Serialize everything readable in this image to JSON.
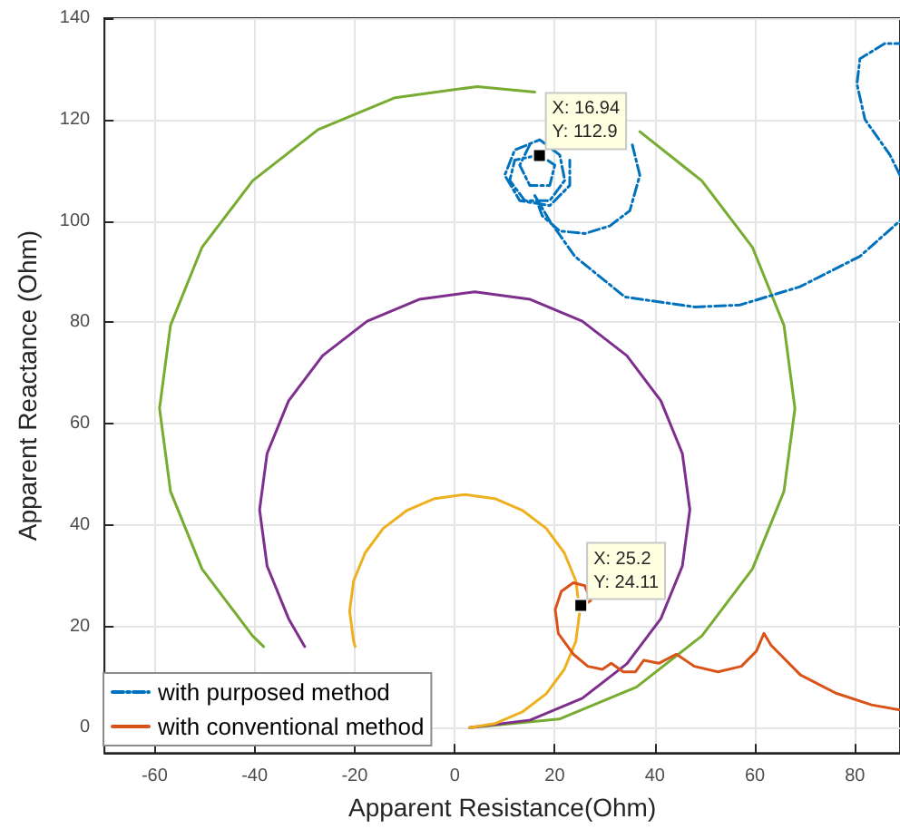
{
  "chart_data": {
    "type": "line",
    "xlabel": "Apparent Resistance(Ohm)",
    "ylabel": "Apparent Reactance (Ohm)",
    "xlim": [
      -70,
      89
    ],
    "xticks": [
      -60,
      -40,
      -20,
      0,
      20,
      40,
      60,
      80
    ],
    "ylim": [
      -5,
      140
    ],
    "yticks": [
      0,
      20,
      40,
      60,
      80,
      100,
      120,
      140
    ],
    "grid": true,
    "legend": "bottom left",
    "marker": "none",
    "annotations": [
      {
        "text": "X: 16.94\nY: 112.9",
        "x": 16.94,
        "y": 112.9
      },
      {
        "text": "X: 25.2\nY: 24.11",
        "x": 25.2,
        "y": 24.11
      }
    ],
    "series": [
      {
        "name": "with purposed method",
        "color": "#0072bd",
        "line_style": "dashed",
        "x": [
          17,
          12,
          11,
          14,
          19,
          22,
          21,
          17,
          12,
          10,
          13,
          19,
          23,
          23,
          null,
          15,
          13,
          15,
          19,
          20,
          17,
          null,
          null,
          null,
          35.5,
          37,
          35,
          31,
          26,
          21,
          17.5,
          16,
          19,
          24,
          34,
          48,
          57,
          69,
          81,
          89,
          null,
          89,
          87,
          82,
          80.4,
          81,
          86,
          89
        ],
        "values": [
          113,
          112,
          108,
          104,
          104,
          108,
          113,
          116,
          114,
          109,
          104,
          103,
          107,
          112,
          null,
          115,
          111,
          107,
          107,
          111,
          113,
          null,
          null,
          null,
          115,
          109,
          102,
          99,
          97.5,
          98,
          101,
          105,
          100,
          93,
          85,
          83,
          83.4,
          87,
          93,
          100,
          null,
          109,
          113,
          120,
          127,
          132,
          135,
          135
        ]
      },
      {
        "name": "with conventional method",
        "color": "#d95319",
        "line_style": "solid",
        "x": [
          25.4,
          27.2,
          26,
          23.7,
          21.3,
          20.1,
          20.7,
          23.7,
          26.6,
          29.5,
          31.3,
          33.7,
          36.1,
          37.8,
          40.8,
          44.3,
          47.9,
          52.6,
          57.3,
          60.3,
          61.8,
          63.2,
          69.1,
          76.2,
          83.3,
          89
        ],
        "values": [
          23.9,
          25.1,
          28,
          28.6,
          26.9,
          23.3,
          18.6,
          14.5,
          12.1,
          11.5,
          12.7,
          11,
          11,
          13.3,
          12.7,
          14.5,
          12.1,
          11,
          12.1,
          15.1,
          18.6,
          16.3,
          10.4,
          6.8,
          4.5,
          3.5
        ]
      },
      {
        "color": "#edb120",
        "line_style": "solid",
        "x": [
          -19.9,
          -20.2,
          -21,
          -20.2,
          -17.9,
          -14.3,
          -9.5,
          -4,
          2,
          8,
          13.5,
          18.3,
          21.9,
          24.2,
          25,
          24.2,
          21.9,
          18.3,
          13.5,
          8,
          3
        ],
        "values": [
          16,
          17,
          23,
          29,
          34.5,
          39.3,
          42.9,
          45.2,
          46,
          45.2,
          42.9,
          39.3,
          34.5,
          29,
          23,
          17,
          11.5,
          6.7,
          3.1,
          0.8,
          0
        ]
      },
      {
        "color": "#7e2f8e",
        "line_style": "solid",
        "x": [
          -30,
          -33.2,
          -37.5,
          -39,
          -37.5,
          -33.2,
          -26.4,
          -17.5,
          -7.1,
          4,
          15.1,
          25.5,
          34.4,
          41.2,
          45.5,
          47,
          45.5,
          41.2,
          34.4,
          25.5,
          15.1,
          3
        ],
        "values": [
          16,
          21.5,
          31.9,
          43,
          54.1,
          64.5,
          73.4,
          80.2,
          84.5,
          86,
          84.5,
          80.2,
          73.4,
          64.5,
          54.1,
          43,
          31.9,
          21.5,
          12.6,
          5.8,
          1.5,
          0
        ]
      },
      {
        "color": "#77ac30",
        "line_style": "solid",
        "x": [
          -38.2,
          -40.4,
          -50.5,
          -56.8,
          -59,
          -56.8,
          -50.5,
          -40.4,
          -27.3,
          -11.9,
          4.5,
          16,
          null,
          37,
          49.4,
          59.5,
          65.8,
          68,
          65.8,
          59.5,
          49.4,
          36.3,
          20.9,
          3
        ],
        "values": [
          16,
          18.1,
          31.3,
          46.6,
          63,
          79.4,
          94.8,
          107.9,
          118,
          124.3,
          126.5,
          125.4,
          null,
          117.6,
          107.9,
          94.8,
          79.4,
          63,
          46.6,
          31.3,
          18.1,
          8,
          1.7,
          0
        ]
      }
    ]
  }
}
